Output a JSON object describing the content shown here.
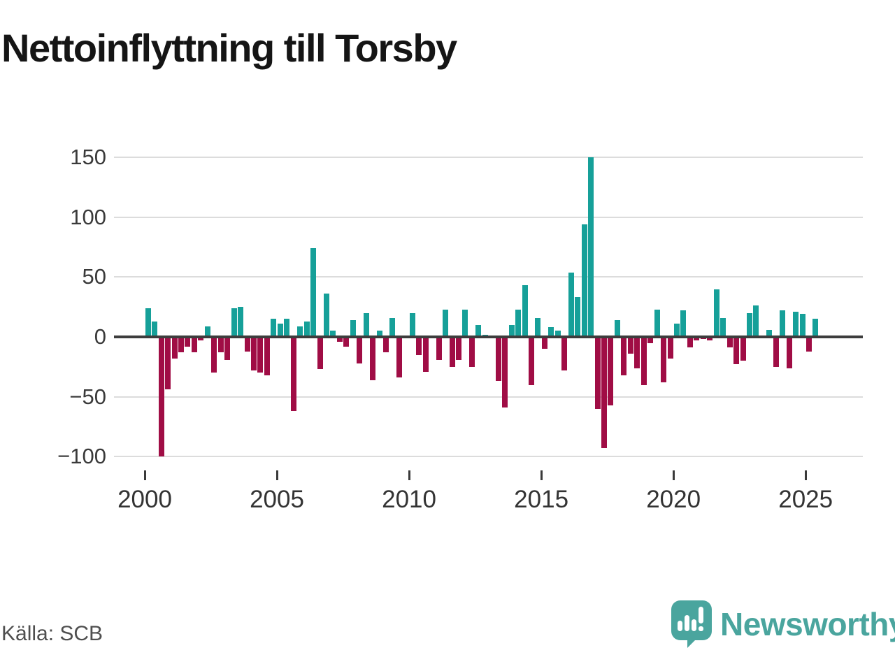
{
  "title": "Nettoinflyttning till Torsby",
  "source_label": "Källa: SCB",
  "logo": {
    "brand": "Newsworthy",
    "icon": "speech-bubble-bar-chart-icon"
  },
  "colors": {
    "positive": "#16a099",
    "negative": "#a00d45",
    "axis": "#3d3d3d",
    "grid": "#dcdcdc",
    "brand": "#4aa59e",
    "tick_text": "#333333",
    "title_text": "#151515",
    "source_text": "#4f4f4f"
  },
  "chart_data": {
    "type": "bar",
    "title": "Nettoinflyttning till Torsby",
    "xlabel": "",
    "ylabel": "",
    "ylim": [
      -100,
      150
    ],
    "grid": true,
    "legend": false,
    "yticks": [
      150,
      100,
      50,
      0,
      -50,
      -100
    ],
    "ytick_labels": [
      "150",
      "100",
      "50",
      "0",
      "−50",
      "−100"
    ],
    "xticks": [
      2000,
      2005,
      2010,
      2015,
      2020,
      2025
    ],
    "x": [
      "2000 Q1",
      "2000 Q2",
      "2000 Q3",
      "2000 Q4",
      "2001 Q1",
      "2001 Q2",
      "2001 Q3",
      "2001 Q4",
      "2002 Q1",
      "2002 Q2",
      "2002 Q3",
      "2002 Q4",
      "2003 Q1",
      "2003 Q2",
      "2003 Q3",
      "2003 Q4",
      "2004 Q1",
      "2004 Q2",
      "2004 Q3",
      "2004 Q4",
      "2005 Q1",
      "2005 Q2",
      "2005 Q3",
      "2005 Q4",
      "2006 Q1",
      "2006 Q2",
      "2006 Q3",
      "2006 Q4",
      "2007 Q1",
      "2007 Q2",
      "2007 Q3",
      "2007 Q4",
      "2008 Q1",
      "2008 Q2",
      "2008 Q3",
      "2008 Q4",
      "2009 Q1",
      "2009 Q2",
      "2009 Q3",
      "2009 Q4",
      "2010 Q1",
      "2010 Q2",
      "2010 Q3",
      "2010 Q4",
      "2011 Q1",
      "2011 Q2",
      "2011 Q3",
      "2011 Q4",
      "2012 Q1",
      "2012 Q2",
      "2012 Q3",
      "2012 Q4",
      "2013 Q1",
      "2013 Q2",
      "2013 Q3",
      "2013 Q4",
      "2014 Q1",
      "2014 Q2",
      "2014 Q3",
      "2014 Q4",
      "2015 Q1",
      "2015 Q2",
      "2015 Q3",
      "2015 Q4",
      "2016 Q1",
      "2016 Q2",
      "2016 Q3",
      "2016 Q4",
      "2017 Q1",
      "2017 Q2",
      "2017 Q3",
      "2017 Q4",
      "2018 Q1",
      "2018 Q2",
      "2018 Q3",
      "2018 Q4",
      "2019 Q1",
      "2019 Q2",
      "2019 Q3",
      "2019 Q4",
      "2020 Q1",
      "2020 Q2",
      "2020 Q3",
      "2020 Q4",
      "2021 Q1",
      "2021 Q2",
      "2021 Q3",
      "2021 Q4",
      "2022 Q1",
      "2022 Q2",
      "2022 Q3",
      "2022 Q4",
      "2023 Q1",
      "2023 Q2",
      "2023 Q3",
      "2023 Q4",
      "2024 Q1",
      "2024 Q2",
      "2024 Q3",
      "2024 Q4",
      "2025 Q1",
      "2025 Q2"
    ],
    "values": [
      24,
      13,
      -100,
      -44,
      -18,
      -13,
      -8,
      -13,
      -3,
      9,
      -30,
      -13,
      -19,
      24,
      25,
      -12,
      -28,
      -30,
      -32,
      15,
      11,
      15,
      -62,
      9,
      13,
      74,
      -27,
      36,
      5,
      -4,
      -8,
      14,
      -22,
      20,
      -36,
      5,
      -13,
      16,
      -34,
      0,
      20,
      -15,
      -29,
      0,
      -19,
      23,
      -25,
      -19,
      23,
      -25,
      10,
      2,
      0,
      -37,
      -59,
      10,
      23,
      43,
      -40,
      16,
      -10,
      8,
      5,
      -28,
      54,
      33,
      94,
      150,
      -60,
      -93,
      -57,
      14,
      -32,
      -14,
      -26,
      -40,
      -5,
      23,
      -38,
      -18,
      11,
      22,
      -9,
      -3,
      -2,
      -3,
      40,
      16,
      -9,
      -23,
      -20,
      20,
      26,
      1,
      6,
      -25,
      22,
      -26,
      21,
      19,
      -12,
      15
    ]
  }
}
